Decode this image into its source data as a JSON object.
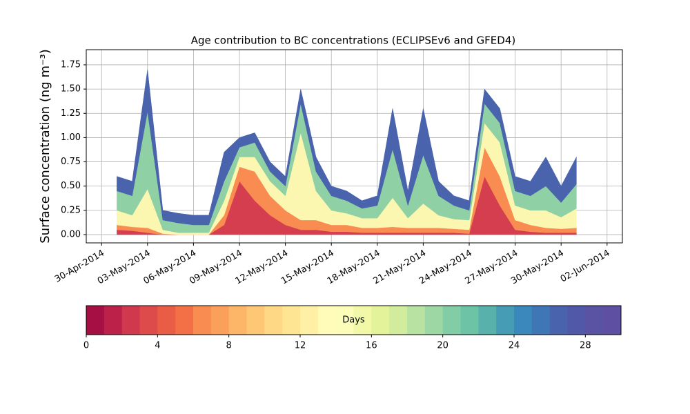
{
  "chart_data": {
    "type": "stacked_area",
    "title": "Age contribution to BC concentrations (ECLIPSEv6 and GFED4)",
    "ylabel": "Surface concentration (ng m⁻³)",
    "x": [
      "2014-05-01",
      "2014-05-02",
      "2014-05-03",
      "2014-05-04",
      "2014-05-05",
      "2014-05-06",
      "2014-05-07",
      "2014-05-08",
      "2014-05-09",
      "2014-05-10",
      "2014-05-11",
      "2014-05-12",
      "2014-05-13",
      "2014-05-14",
      "2014-05-15",
      "2014-05-16",
      "2014-05-17",
      "2014-05-18",
      "2014-05-19",
      "2014-05-20",
      "2014-05-21",
      "2014-05-22",
      "2014-05-23",
      "2014-05-24",
      "2014-05-25",
      "2014-05-26",
      "2014-05-27",
      "2014-05-28",
      "2014-05-29",
      "2014-05-30",
      "2014-05-31"
    ],
    "series": [
      {
        "color": "#d53e4f",
        "values": [
          0.05,
          0.04,
          0.02,
          0,
          0,
          0,
          0,
          0.1,
          0.55,
          0.35,
          0.2,
          0.1,
          0.05,
          0.05,
          0.03,
          0.03,
          0.02,
          0.02,
          0.02,
          0.02,
          0.02,
          0.02,
          0.02,
          0.01,
          0.6,
          0.3,
          0.05,
          0.03,
          0.02,
          0.02,
          0.02
        ]
      },
      {
        "color": "#f88c51",
        "values": [
          0.05,
          0.04,
          0.05,
          0.01,
          0,
          0,
          0,
          0.1,
          0.15,
          0.3,
          0.2,
          0.15,
          0.1,
          0.1,
          0.07,
          0.07,
          0.05,
          0.05,
          0.06,
          0.05,
          0.05,
          0.05,
          0.04,
          0.04,
          0.3,
          0.3,
          0.1,
          0.07,
          0.05,
          0.04,
          0.05
        ]
      },
      {
        "color": "#fbf6b0",
        "values": [
          0.15,
          0.12,
          0.4,
          0.04,
          0.02,
          0.02,
          0.02,
          0.15,
          0.1,
          0.15,
          0.15,
          0.15,
          0.9,
          0.3,
          0.15,
          0.12,
          0.1,
          0.1,
          0.3,
          0.1,
          0.25,
          0.13,
          0.1,
          0.1,
          0.25,
          0.35,
          0.15,
          0.15,
          0.18,
          0.12,
          0.2
        ]
      },
      {
        "color": "#8fd1a4",
        "values": [
          0.2,
          0.2,
          0.8,
          0.1,
          0.1,
          0.08,
          0.08,
          0.2,
          0.1,
          0.15,
          0.1,
          0.1,
          0.3,
          0.2,
          0.15,
          0.13,
          0.1,
          0.13,
          0.5,
          0.13,
          0.5,
          0.2,
          0.14,
          0.1,
          0.2,
          0.2,
          0.15,
          0.15,
          0.25,
          0.15,
          0.25
        ]
      },
      {
        "color": "#4a63ad",
        "values": [
          0.15,
          0.15,
          0.43,
          0.1,
          0.1,
          0.1,
          0.1,
          0.3,
          0.1,
          0.1,
          0.1,
          0.1,
          0.15,
          0.15,
          0.1,
          0.1,
          0.08,
          0.1,
          0.42,
          0.15,
          0.48,
          0.15,
          0.1,
          0.1,
          0.15,
          0.15,
          0.15,
          0.15,
          0.3,
          0.17,
          0.28
        ]
      }
    ],
    "xlim": [
      "2014-04-29",
      "2014-06-03"
    ],
    "xticks": [
      {
        "value": "2014-04-30",
        "label": "30-Apr-2014"
      },
      {
        "value": "2014-05-03",
        "label": "03-May-2014"
      },
      {
        "value": "2014-05-06",
        "label": "06-May-2014"
      },
      {
        "value": "2014-05-09",
        "label": "09-May-2014"
      },
      {
        "value": "2014-05-12",
        "label": "12-May-2014"
      },
      {
        "value": "2014-05-15",
        "label": "15-May-2014"
      },
      {
        "value": "2014-05-18",
        "label": "18-May-2014"
      },
      {
        "value": "2014-05-21",
        "label": "21-May-2014"
      },
      {
        "value": "2014-05-24",
        "label": "24-May-2014"
      },
      {
        "value": "2014-05-27",
        "label": "27-May-2014"
      },
      {
        "value": "2014-05-30",
        "label": "30-May-2014"
      },
      {
        "value": "2014-06-02",
        "label": "02-Jun-2014"
      }
    ],
    "ylim": [
      -0.085,
      1.906
    ],
    "yticks": [
      {
        "value": 0,
        "label": "0.00"
      },
      {
        "value": 0.25,
        "label": "0.25"
      },
      {
        "value": 0.5,
        "label": "0.50"
      },
      {
        "value": 0.75,
        "label": "0.75"
      },
      {
        "value": 1,
        "label": "1.00"
      },
      {
        "value": 1.25,
        "label": "1.25"
      },
      {
        "value": 1.5,
        "label": "1.50"
      },
      {
        "value": 1.75,
        "label": "1.75"
      }
    ],
    "grid": true,
    "colorbar": {
      "label": "Days",
      "lim": [
        0,
        30
      ],
      "ticks": [
        0,
        4,
        8,
        12,
        16,
        20,
        24,
        28
      ],
      "colors": [
        "#a50f43",
        "#bb2149",
        "#cf384d",
        "#de4b4b",
        "#e95d47",
        "#f36f45",
        "#f88c51",
        "#fba05b",
        "#fdb567",
        "#fec776",
        "#fed884",
        "#fee593",
        "#fff0a6",
        "#fffbb8",
        "#fbfdb8",
        "#f1f9a9",
        "#e3f399",
        "#d0ec9c",
        "#b8e2a1",
        "#9dd7a4",
        "#82cda5",
        "#6cc3a5",
        "#58b2ab",
        "#459cb4",
        "#3b88bc",
        "#3f76b6",
        "#4a63ad",
        "#5258a8",
        "#5a53a4",
        "#5e4fa2"
      ]
    }
  }
}
